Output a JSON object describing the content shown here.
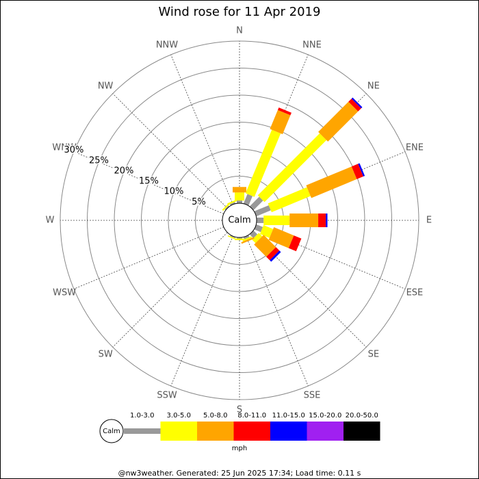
{
  "chart_data": {
    "type": "windrose",
    "title": "Wind rose for 11 Apr 2019",
    "calm_label": "Calm",
    "unit": "mph",
    "footer": "@nw3weather. Generated: 25 Jun 2025 17:34; Load time: 0.11 s",
    "categories": [
      "N",
      "NNE",
      "NE",
      "ENE",
      "E",
      "ESE",
      "SE",
      "SSE",
      "S",
      "SSW",
      "SW",
      "WSW",
      "W",
      "WNW",
      "NW",
      "NNW"
    ],
    "rlim": [
      0,
      30
    ],
    "rticks": [
      {
        "value": 5,
        "label": "5%"
      },
      {
        "value": 10,
        "label": "10%"
      },
      {
        "value": 15,
        "label": "15%"
      },
      {
        "value": 20,
        "label": "20%"
      },
      {
        "value": 25,
        "label": "25%"
      },
      {
        "value": 30,
        "label": "30%"
      }
    ],
    "series": [
      {
        "name": "1.0-3.0",
        "color": "#999999",
        "values": [
          0.5,
          1.9,
          2.5,
          2.9,
          1.3,
          1.3,
          1.0,
          0.4,
          0.2,
          0.2,
          0,
          0,
          0,
          0,
          0.2,
          0.3
        ]
      },
      {
        "name": "3.0-5.0",
        "color": "#ffff00",
        "values": [
          1.5,
          12.7,
          16.2,
          7.8,
          4.8,
          1.9,
          0.9,
          0.3,
          0.3,
          0.2,
          0,
          0,
          0,
          0,
          0.3,
          0.3
        ]
      },
      {
        "name": "5.0-8.0",
        "color": "#ffa500",
        "values": [
          1.0,
          3.8,
          7.9,
          9.1,
          5.3,
          4.0,
          3.2,
          0.3,
          0,
          0,
          0,
          0,
          0,
          0,
          0,
          0
        ]
      },
      {
        "name": "8.0-11.0",
        "color": "#ff0000",
        "values": [
          0,
          0.5,
          0.8,
          1.3,
          1.4,
          1.5,
          0.9,
          0,
          0,
          0,
          0,
          0,
          0,
          0,
          0,
          0
        ]
      },
      {
        "name": "11.0-15.0",
        "color": "#0000ff",
        "values": [
          0,
          0,
          0.3,
          0.3,
          0.3,
          0,
          0.4,
          0,
          0,
          0,
          0,
          0,
          0,
          0,
          0,
          0
        ]
      },
      {
        "name": "15.0-20.0",
        "color": "#a020f0",
        "values": [
          0,
          0,
          0,
          0,
          0,
          0,
          0,
          0,
          0,
          0,
          0,
          0,
          0,
          0,
          0,
          0
        ]
      },
      {
        "name": "20.0-50.0",
        "color": "#000000",
        "values": [
          0,
          0,
          0,
          0,
          0,
          0,
          0,
          0,
          0,
          0,
          0,
          0,
          0,
          0,
          0,
          0
        ]
      }
    ]
  }
}
